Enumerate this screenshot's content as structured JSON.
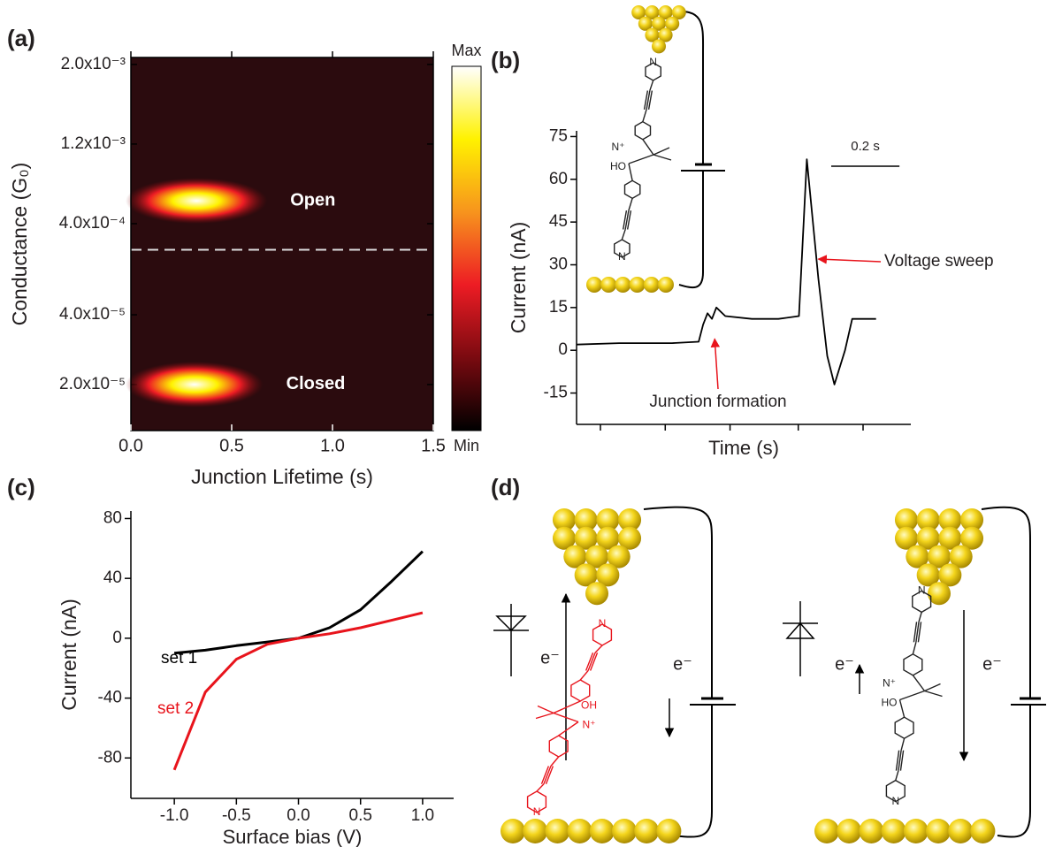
{
  "chart_data": [
    {
      "type": "heatmap",
      "panel": "(a)",
      "x_label": "Junction Lifetime (s)",
      "y_label": "Conductance (G₀)",
      "xlim": [
        0,
        1.5
      ],
      "xticks": [
        {
          "value": 0,
          "label": "0.0"
        },
        0.5,
        {
          "value": 1,
          "label": "1.0"
        },
        1.5
      ],
      "background": "#2b0b0e",
      "y_segments": [
        {
          "ylim": [
            0.00016,
            0.00207
          ],
          "yticks": [
            {
              "value": 0.0004,
              "label": "4.0x10⁻⁴"
            },
            {
              "value": 0.0012,
              "label": "1.2x10⁻³"
            },
            {
              "value": 0.002,
              "label": "2.0x10⁻³"
            }
          ],
          "cluster": {
            "label": "Open",
            "x": [
              0,
              0.65
            ],
            "y": 0.00063
          }
        },
        {
          "ylim": [
            6.8e-06,
            5.8e-05
          ],
          "yticks": [
            {
              "value": 2e-05,
              "label": "2.0x10⁻⁵"
            },
            {
              "value": 4e-05,
              "label": "4.0x10⁻⁵"
            }
          ],
          "cluster": {
            "label": "Closed",
            "x": [
              0,
              0.63
            ],
            "y": 2e-05
          }
        }
      ],
      "colorbar": {
        "max_label": "Max",
        "min_label": "Min",
        "colors": [
          "#ffffff",
          "#fff200",
          "#f7941d",
          "#ed1c24",
          "#7a0a10",
          "#000000"
        ]
      }
    },
    {
      "type": "line",
      "panel": "(b)",
      "x_label": "Time (s)",
      "y_label": "Current (nA)",
      "xlim": [
        0,
        0.98
      ],
      "x_tick_marks": [
        0.07,
        0.26,
        0.45,
        0.65,
        0.84
      ],
      "ylim": [
        -26,
        77
      ],
      "yticks": [
        -15,
        0,
        15,
        30,
        45,
        60,
        75
      ],
      "x": [
        0,
        0.125,
        0.28,
        0.358,
        0.371,
        0.384,
        0.397,
        0.41,
        0.436,
        0.514,
        0.592,
        0.652,
        0.675,
        0.709,
        0.735,
        0.756,
        0.787,
        0.808,
        0.878
      ],
      "series": [
        {
          "color": "#000000",
          "values": [
            2,
            2.5,
            2.5,
            3,
            9,
            13,
            11,
            15,
            12,
            11,
            11,
            12,
            67,
            25,
            -2,
            -12,
            0,
            11,
            11
          ]
        }
      ],
      "scale_bar": {
        "length": 0.2,
        "label": "0.2 s"
      },
      "annotations": [
        {
          "text": "Voltage sweep",
          "x": 0.709,
          "y": 32,
          "color": "#e8141c"
        },
        {
          "text": "Junction formation",
          "x": 0.405,
          "y": 4,
          "color": "#e8141c"
        }
      ]
    },
    {
      "type": "line",
      "panel": "(c)",
      "x_label": "Surface bias (V)",
      "y_label": "Current (nA)",
      "xlim": [
        -1.35,
        1.25
      ],
      "xticks": [
        {
          "value": -1,
          "label": "-1.0"
        },
        -0.5,
        {
          "value": 0,
          "label": "0.0"
        },
        0.5,
        {
          "value": 1,
          "label": "1.0"
        }
      ],
      "ylim": [
        -107,
        85
      ],
      "yticks": [
        -80,
        -40,
        0,
        40,
        80
      ],
      "x": [
        -1,
        -0.75,
        -0.5,
        -0.25,
        0,
        0.25,
        0.5,
        0.75,
        1
      ],
      "series": [
        {
          "name": "set 1",
          "color": "#000000",
          "values": [
            -10,
            -8,
            -5,
            -2.5,
            0,
            7,
            19,
            38,
            58
          ]
        },
        {
          "name": "set 2",
          "color": "#e8141c",
          "values": [
            -88,
            -36,
            -14,
            -4,
            0,
            3,
            7,
            12,
            17
          ]
        }
      ]
    }
  ],
  "diagram": {
    "panel": "(d)",
    "electron_labels": [
      "e⁻",
      "e⁻",
      "e⁻",
      "e⁻"
    ],
    "molecules": [
      {
        "atoms": [
          "N",
          "N⁺",
          "HO",
          "N"
        ],
        "color": "#222222"
      },
      {
        "atoms": [
          "N",
          "OH",
          "N⁺",
          "N"
        ],
        "color": "#e8141c"
      },
      {
        "atoms": [
          "N",
          "N⁺",
          "HO",
          "N"
        ],
        "color": "#222222"
      }
    ]
  }
}
